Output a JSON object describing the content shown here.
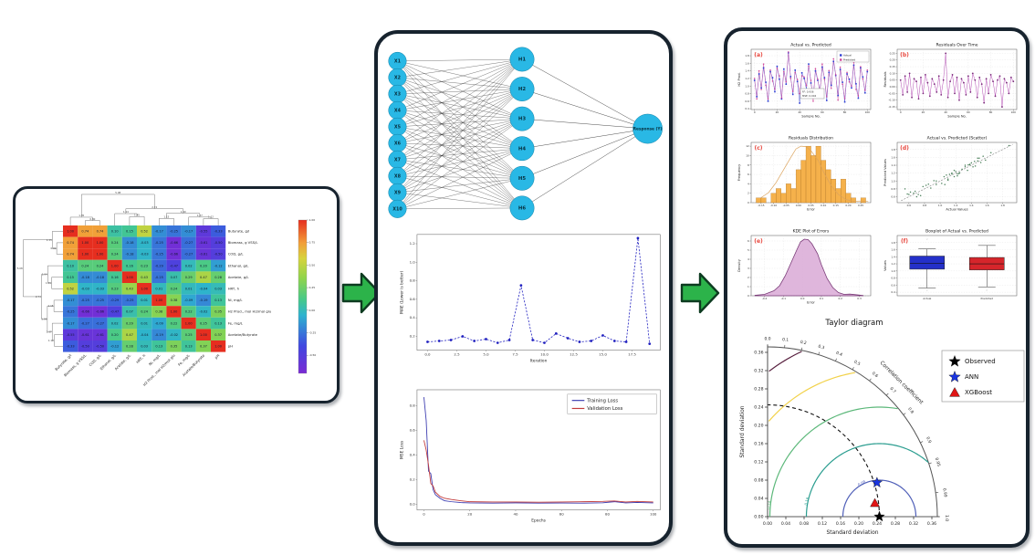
{
  "figure": {
    "arrow_color": "#2cb34a",
    "arrow_border": "#0d3b20",
    "panel_border": "#17232e"
  },
  "heatmap_panel": {
    "labels": [
      "Butyrate, g/l",
      "Biomass, g VSS/L",
      "COD, g/L",
      "Ethanol, g/L",
      "Acetate, g/L",
      "HRT, h",
      "Ni, mg/L",
      "H2 Prod., mol H2/mol glu",
      "Fe, mg/L",
      "Acetate/Butyrate",
      "pH"
    ],
    "matrix": [
      [
        1.0,
        0.74,
        0.74,
        0.1,
        0.15,
        0.52,
        -0.17,
        -0.25,
        -0.17,
        -0.55,
        -0.33
      ],
      [
        0.74,
        1.0,
        1.0,
        0.24,
        -0.18,
        -0.03,
        -0.25,
        -0.66,
        -0.27,
        -0.61,
        -0.5
      ],
      [
        0.74,
        1.0,
        1.0,
        0.24,
        -0.18,
        -0.03,
        -0.25,
        -0.66,
        -0.27,
        -0.61,
        -0.5
      ],
      [
        0.1,
        0.24,
        0.24,
        1.0,
        0.16,
        0.23,
        -0.29,
        -0.47,
        0.02,
        0.2,
        -0.12
      ],
      [
        0.15,
        -0.18,
        -0.18,
        0.16,
        1.0,
        0.43,
        -0.25,
        0.07,
        0.29,
        0.47,
        0.28
      ],
      [
        0.52,
        -0.03,
        -0.03,
        0.23,
        0.43,
        1.0,
        0.01,
        0.24,
        0.01,
        -0.04,
        0.03
      ],
      [
        -0.17,
        -0.25,
        -0.25,
        -0.29,
        -0.25,
        0.01,
        1.0,
        0.38,
        -0.09,
        -0.19,
        0.13
      ],
      [
        -0.25,
        -0.66,
        -0.66,
        -0.47,
        0.07,
        0.24,
        0.38,
        1.0,
        0.22,
        -0.02,
        0.35
      ],
      [
        -0.17,
        -0.27,
        -0.27,
        0.02,
        0.29,
        0.01,
        -0.09,
        0.22,
        1.0,
        0.25,
        0.13
      ],
      [
        -0.55,
        -0.61,
        -0.61,
        0.2,
        0.47,
        -0.04,
        -0.19,
        -0.02,
        0.25,
        1.0,
        0.37
      ],
      [
        -0.33,
        -0.5,
        -0.5,
        -0.12,
        0.28,
        0.03,
        0.13,
        0.35,
        0.13,
        0.37,
        1.0
      ]
    ],
    "value_range": [
      -0.7,
      1.0
    ],
    "colorbar_ticks": [
      "1.00",
      "0.75",
      "0.50",
      "0.25",
      "0.00",
      "-0.25",
      "-0.50"
    ],
    "dendrogram_merge_labels": [
      "0.80",
      "1.35",
      "1.45",
      "1.94",
      "1.15",
      "1.12",
      "1.37",
      "1.99",
      "2.74",
      "5.08"
    ]
  },
  "nn": {
    "inputs": [
      "X1",
      "X2",
      "X3",
      "X4",
      "X5",
      "X6",
      "X7",
      "X8",
      "X9",
      "X10"
    ],
    "hidden": [
      "H1",
      "H2",
      "H3",
      "H4",
      "H5",
      "H6"
    ],
    "output": "Response (Y)",
    "node_color": "#29b8e5",
    "node_edge": "#0e7fa6"
  },
  "samples": {
    "x_step": 2,
    "actual": [
      1.15,
      0.72,
      1.32,
      0.95,
      1.48,
      1.1,
      0.6,
      1.38,
      1.22,
      0.85,
      1.52,
      1.18,
      0.66,
      1.45,
      1.05,
      1.88,
      1.25,
      0.78,
      1.42,
      1.12,
      0.55,
      1.35,
      1.2,
      0.92,
      1.58,
      1.08,
      0.7,
      1.4,
      1.15,
      0.88,
      1.5,
      1.22,
      0.62,
      1.36,
      1.02,
      1.65,
      1.28,
      0.75,
      1.44,
      1.1,
      0.58,
      1.32,
      1.18,
      0.95,
      1.55,
      1.06,
      0.68,
      1.48,
      1.24,
      0.82,
      1.38
    ],
    "predicted": [
      1.2,
      0.66,
      1.4,
      0.91,
      1.58,
      1.02,
      0.66,
      1.42,
      1.13,
      0.92,
      1.47,
      1.27,
      0.69,
      1.38,
      1.11,
      1.9,
      1.21,
      0.86,
      1.36,
      1.17,
      0.8,
      1.27,
      1.24,
      1.01,
      1.53,
      1.15,
      0.6,
      1.46,
      1.18,
      0.82,
      1.58,
      1.18,
      0.72,
      1.41,
      0.94,
      1.72,
      1.3,
      0.63,
      1.5,
      1.05,
      0.67,
      1.36,
      1.11,
      1.0,
      1.63,
      0.91,
      0.74,
      1.51,
      1.19,
      0.89,
      1.42
    ],
    "residuals": [
      0.05,
      -0.06,
      0.08,
      -0.04,
      0.1,
      -0.08,
      0.06,
      0.04,
      -0.09,
      0.07,
      -0.05,
      0.09,
      0.03,
      -0.07,
      0.06,
      0.02,
      -0.04,
      0.08,
      -0.06,
      0.05,
      0.25,
      -0.08,
      0.04,
      0.09,
      -0.05,
      0.07,
      -0.1,
      0.06,
      0.03,
      -0.06,
      0.08,
      -0.04,
      0.1,
      0.05,
      -0.08,
      0.07,
      0.02,
      -0.12,
      0.06,
      -0.05,
      0.09,
      0.04,
      -0.07,
      0.05,
      0.08,
      -0.15,
      0.06,
      0.03,
      -0.05,
      0.07,
      0.04
    ]
  },
  "chart_data": [
    {
      "id": "mae",
      "type": "line",
      "title": "",
      "xlabel": "Iteration",
      "ylabel": "MAE (Lower is better)",
      "values": [
        0.14,
        0.15,
        0.16,
        0.2,
        0.15,
        0.17,
        0.13,
        0.16,
        0.75,
        0.16,
        0.13,
        0.23,
        0.18,
        0.14,
        0.15,
        0.21,
        0.15,
        0.14,
        1.26,
        0.12
      ],
      "xticks": [
        "0.0",
        "2.5",
        "5.0",
        "7.5",
        "10.0",
        "12.5",
        "15.0",
        "17.5"
      ],
      "yticks": [
        "0.2",
        "0.4",
        "0.6",
        "0.8",
        "1.0",
        "1.2"
      ],
      "xlim": [
        -0.9,
        19.9
      ],
      "ylim": [
        0.05,
        1.3
      ],
      "color": "#1f1fbf"
    },
    {
      "id": "loss",
      "type": "line",
      "xlabel": "Epochs",
      "ylabel": "MSE Loss",
      "xlim": [
        -3,
        103
      ],
      "ylim": [
        -0.045,
        0.93
      ],
      "xticks": [
        "0",
        "20",
        "40",
        "60",
        "80",
        "100"
      ],
      "yticks": [
        "0.0",
        "0.2",
        "0.4",
        "0.6",
        "0.8"
      ],
      "series": [
        {
          "name": "Training Loss",
          "color": "#3b3bb0",
          "points": [
            [
              0,
              0.87
            ],
            [
              1,
              0.68
            ],
            [
              2,
              0.27
            ],
            [
              3,
              0.25
            ],
            [
              4,
              0.12
            ],
            [
              5,
              0.08
            ],
            [
              7,
              0.05
            ],
            [
              9,
              0.03
            ],
            [
              12,
              0.022
            ],
            [
              16,
              0.015
            ],
            [
              20,
              0.012
            ],
            [
              30,
              0.01
            ],
            [
              40,
              0.012
            ],
            [
              50,
              0.01
            ],
            [
              60,
              0.011
            ],
            [
              70,
              0.01
            ],
            [
              78,
              0.013
            ],
            [
              83,
              0.022
            ],
            [
              88,
              0.012
            ],
            [
              93,
              0.016
            ],
            [
              100,
              0.012
            ]
          ]
        },
        {
          "name": "Validation Loss",
          "color": "#c23b3b",
          "points": [
            [
              0,
              0.52
            ],
            [
              1,
              0.44
            ],
            [
              2,
              0.32
            ],
            [
              3,
              0.17
            ],
            [
              4,
              0.15
            ],
            [
              5,
              0.1
            ],
            [
              7,
              0.065
            ],
            [
              9,
              0.05
            ],
            [
              12,
              0.04
            ],
            [
              16,
              0.03
            ],
            [
              20,
              0.022
            ],
            [
              30,
              0.02
            ],
            [
              40,
              0.02
            ],
            [
              50,
              0.018
            ],
            [
              60,
              0.02
            ],
            [
              70,
              0.022
            ],
            [
              78,
              0.024
            ],
            [
              83,
              0.028
            ],
            [
              88,
              0.02
            ],
            [
              93,
              0.024
            ],
            [
              100,
              0.02
            ]
          ]
        }
      ]
    },
    {
      "id": "actual_predicted",
      "type": "line",
      "letter": "(a)",
      "title": "Actual vs. Predicted",
      "xlabel": "Sample No.",
      "ylabel": "H2 Prod.",
      "xlim": [
        -3,
        103
      ],
      "ylim": [
        0.38,
        1.97
      ],
      "xticks": [
        "0",
        "20",
        "40",
        "60",
        "80",
        "100"
      ],
      "yticks": [
        "0.4",
        "0.6",
        "0.8",
        "1.0",
        "1.2",
        "1.4",
        "1.6",
        "1.8"
      ],
      "legend": [
        "Actual",
        "Predicted"
      ],
      "colors": [
        "#2f3fd3",
        "#d0489a"
      ],
      "annotation": [
        "R²: 0.936",
        "MSE: 0.004"
      ]
    },
    {
      "id": "residuals_time",
      "type": "line",
      "letter": "(b)",
      "title": "Residuals Over Time",
      "xlabel": "Sample No.",
      "ylabel": "Residuals",
      "xlim": [
        -3,
        103
      ],
      "ylim": [
        -0.17,
        0.28
      ],
      "xticks": [
        "0",
        "20",
        "40",
        "60",
        "80",
        "100"
      ],
      "yticks": [
        "-0.15",
        "-0.10",
        "-0.05",
        "0.00",
        "0.05",
        "0.10",
        "0.15",
        "0.20",
        "0.25"
      ],
      "color": "#b44fb4",
      "marker_color": "#7a2a7a"
    },
    {
      "id": "residuals_dist",
      "type": "histogram",
      "letter": "(c)",
      "title": "Residuals Distribution",
      "xlabel": "Error",
      "ylabel": "Frequency",
      "bin_start": -0.17,
      "bin_width": 0.02,
      "counts": [
        1,
        1,
        0,
        2,
        3,
        2,
        4,
        3,
        7,
        9,
        12,
        10,
        12,
        9,
        7,
        5,
        3,
        5,
        2,
        1,
        0,
        1
      ],
      "xlim": [
        -0.19,
        0.29
      ],
      "ylim": [
        0,
        12.8
      ],
      "xticks": [
        "-0.15",
        "-0.10",
        "-0.05",
        "0.00",
        "0.05",
        "0.10",
        "0.15",
        "0.20",
        "0.25"
      ],
      "yticks": [
        "0",
        "2",
        "4",
        "6",
        "8",
        "10",
        "12"
      ],
      "bar_color": "#f5b14b",
      "bar_edge": "#a86d1f",
      "curve_color": "#dca45e"
    },
    {
      "id": "scatter",
      "type": "scatter",
      "letter": "(d)",
      "title": "Actual vs. Predicted (Scatter)",
      "xlabel": "Actual Values",
      "ylabel": "Predicted Values",
      "xlim": [
        0.45,
        1.98
      ],
      "ylim": [
        0.45,
        1.98
      ],
      "xticks": [
        "0.6",
        "0.8",
        "1.0",
        "1.2",
        "1.4",
        "1.6",
        "1.8"
      ],
      "yticks": [
        "0.6",
        "0.8",
        "1.0",
        "1.2",
        "1.4",
        "1.6",
        "1.8"
      ],
      "color": "#2d6b3f"
    },
    {
      "id": "kde",
      "type": "area",
      "letter": "(e)",
      "title": "KDE Plot of Errors",
      "xlabel": "Error",
      "ylabel": "Density",
      "points": [
        [
          -0.25,
          0.05
        ],
        [
          -0.2,
          0.15
        ],
        [
          -0.15,
          0.55
        ],
        [
          -0.12,
          1.1
        ],
        [
          -0.09,
          2.2
        ],
        [
          -0.06,
          3.6
        ],
        [
          -0.03,
          5.0
        ],
        [
          -0.01,
          5.9
        ],
        [
          0.01,
          6.2
        ],
        [
          0.03,
          6.15
        ],
        [
          0.05,
          5.7
        ],
        [
          0.08,
          4.6
        ],
        [
          0.1,
          3.4
        ],
        [
          0.13,
          1.9
        ],
        [
          0.16,
          0.9
        ],
        [
          0.19,
          0.35
        ],
        [
          0.22,
          0.15
        ],
        [
          0.25,
          0.18
        ],
        [
          0.28,
          0.12
        ],
        [
          0.32,
          0.03
        ]
      ],
      "xlim": [
        -0.27,
        0.36
      ],
      "ylim": [
        0,
        6.6
      ],
      "xticks": [
        "-0.2",
        "-0.1",
        "0.0",
        "0.1",
        "0.2",
        "0.3"
      ],
      "yticks": [
        "0",
        "1",
        "2",
        "3",
        "4",
        "5",
        "6"
      ],
      "fill": "#d9a9d6",
      "line": "#7a3b78"
    },
    {
      "id": "box",
      "type": "box",
      "letter": "(f)",
      "title": "Boxplot of Actual vs. Predicted",
      "ylabel": "Values",
      "categories": [
        "Actual",
        "Predicted"
      ],
      "colors": [
        "#2430c9",
        "#d6252b"
      ],
      "stats": [
        {
          "lo": 0.52,
          "q1": 1.05,
          "med": 1.22,
          "q3": 1.42,
          "hi": 1.62,
          "outliers": [
            1.9,
            0.45
          ]
        },
        {
          "lo": 0.55,
          "q1": 1.03,
          "med": 1.2,
          "q3": 1.38,
          "hi": 1.72,
          "outliers": [
            0.45
          ]
        }
      ],
      "ylim": [
        0.3,
        2.0
      ],
      "yticks": [
        "0.4",
        "0.6",
        "0.8",
        "1.0",
        "1.2",
        "1.4",
        "1.6",
        "1.8"
      ]
    },
    {
      "id": "taylor",
      "type": "taylor",
      "title": "Taylor diagram",
      "xlabel": "Standard deviation",
      "ylabel": "Standard deviation",
      "std_max": 0.372,
      "std_ticks": [
        "0.00",
        "0.04",
        "0.08",
        "0.12",
        "0.16",
        "0.20",
        "0.24",
        "0.28",
        "0.32",
        "0.36"
      ],
      "corr_label": "Correlation coefficient",
      "corr_ticks": [
        "0.0",
        "0.1",
        "0.2",
        "0.3",
        "0.4",
        "0.5",
        "0.6",
        "0.7",
        "0.8",
        "0.9",
        "0.95",
        "0.99",
        "1.0"
      ],
      "observed_std": 0.245,
      "contours": [
        {
          "r": 0.08,
          "color": "#4f5fb8",
          "label": "0.08"
        },
        {
          "r": 0.16,
          "color": "#2a9d8f",
          "label": "0.16"
        },
        {
          "r": 0.24,
          "color": "#5cb87a",
          "label": "0.24"
        },
        {
          "r": 0.32,
          "color": "#f2d24b",
          "label": "0.32"
        },
        {
          "r": 0.4,
          "color": "#58203f",
          "label": "0.40"
        }
      ],
      "points": [
        {
          "name": "Observed",
          "marker": "star",
          "color": "#000000",
          "std": 0.245,
          "corr": 1.0
        },
        {
          "name": "ANN",
          "marker": "star",
          "color": "#1a35e0",
          "std": 0.251,
          "corr": 0.955
        },
        {
          "name": "XGBoost",
          "marker": "triangle",
          "color": "#e01515",
          "std": 0.237,
          "corr": 0.992
        }
      ]
    }
  ]
}
